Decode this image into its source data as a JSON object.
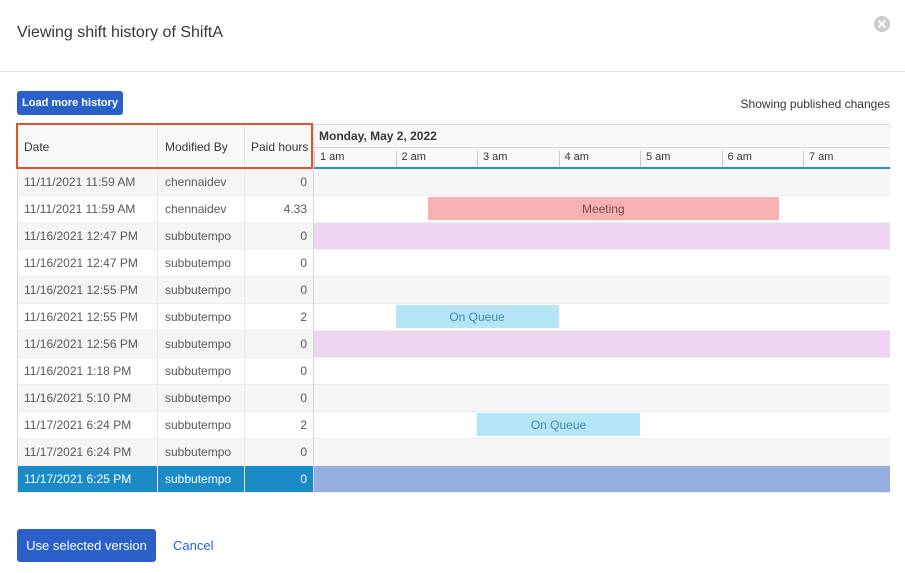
{
  "dialog": {
    "title": "Viewing shift history of ShiftA",
    "close_icon": "close-icon"
  },
  "toolbar": {
    "load_more_label": "Load more history",
    "status_text": "Showing published changes"
  },
  "table": {
    "columns": [
      "Date",
      "Modified By",
      "Paid hours"
    ],
    "rows": [
      {
        "date": "11/11/2021 11:59 AM",
        "modified_by": "chennaidev",
        "paid_hours": "0"
      },
      {
        "date": "11/11/2021 11:59 AM",
        "modified_by": "chennaidev",
        "paid_hours": "4.33"
      },
      {
        "date": "11/16/2021 12:47 PM",
        "modified_by": "subbutempo",
        "paid_hours": "0"
      },
      {
        "date": "11/16/2021 12:47 PM",
        "modified_by": "subbutempo",
        "paid_hours": "0"
      },
      {
        "date": "11/16/2021 12:55 PM",
        "modified_by": "subbutempo",
        "paid_hours": "0"
      },
      {
        "date": "11/16/2021 12:55 PM",
        "modified_by": "subbutempo",
        "paid_hours": "2"
      },
      {
        "date": "11/16/2021 12:56 PM",
        "modified_by": "subbutempo",
        "paid_hours": "0"
      },
      {
        "date": "11/16/2021 1:18 PM",
        "modified_by": "subbutempo",
        "paid_hours": "0"
      },
      {
        "date": "11/16/2021 5:10 PM",
        "modified_by": "subbutempo",
        "paid_hours": "0"
      },
      {
        "date": "11/17/2021 6:24 PM",
        "modified_by": "subbutempo",
        "paid_hours": "2"
      },
      {
        "date": "11/17/2021 6:24 PM",
        "modified_by": "subbutempo",
        "paid_hours": "0"
      },
      {
        "date": "11/17/2021 6:25 PM",
        "modified_by": "subbutempo",
        "paid_hours": "0"
      }
    ],
    "selected_row": 11
  },
  "timeline": {
    "date_label": "Monday, May 2, 2022",
    "hours": [
      "1 am",
      "2 am",
      "3 am",
      "4 am",
      "5 am",
      "6 am",
      "7 am"
    ],
    "activities": [
      {
        "row": 1,
        "label": "Meeting",
        "kind": "meeting",
        "start_hour": 2.4,
        "end_hour": 6.7
      },
      {
        "row": 5,
        "label": "On Queue",
        "kind": "queue",
        "start_hour": 2.0,
        "end_hour": 4.0
      },
      {
        "row": 9,
        "label": "On Queue",
        "kind": "queue",
        "start_hour": 3.0,
        "end_hour": 5.0
      }
    ],
    "full_rows": [
      {
        "row": 2,
        "kind": "pink"
      },
      {
        "row": 6,
        "kind": "pink"
      },
      {
        "row": 11,
        "kind": "blue"
      }
    ],
    "colors": {
      "meeting": "#f7b1b2",
      "queue": "#b4e6f7",
      "pink": "#eed6f0",
      "selected": "#1b8bc6",
      "selected_timeline": "#95aee0"
    }
  },
  "footer": {
    "use_label": "Use selected version",
    "cancel_label": "Cancel"
  }
}
